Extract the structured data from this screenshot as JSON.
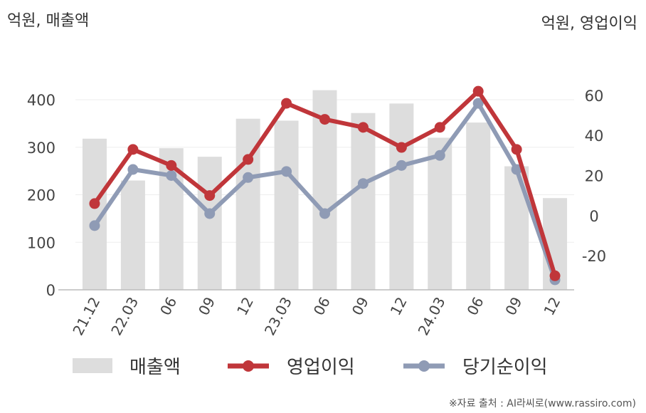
{
  "chart_data": {
    "type": "bar+line",
    "categories": [
      "21.12",
      "22.03",
      "06",
      "09",
      "12",
      "23.03",
      "06",
      "09",
      "12",
      "24.03",
      "06",
      "09",
      "12"
    ],
    "series": [
      {
        "name": "매출액",
        "type": "bar",
        "axis": "left",
        "color": "#dddddd",
        "values": [
          318,
          230,
          298,
          280,
          360,
          356,
          420,
          372,
          392,
          320,
          352,
          260,
          193
        ]
      },
      {
        "name": "영업이익",
        "type": "line",
        "axis": "right",
        "color": "#c0363a",
        "values": [
          6,
          33,
          25,
          10,
          28,
          56,
          48,
          44,
          34,
          44,
          62,
          33,
          -30
        ]
      },
      {
        "name": "당기순이익",
        "type": "line",
        "axis": "right",
        "color": "#8f9bb5",
        "values": [
          -5,
          23,
          20,
          1,
          19,
          22,
          1,
          16,
          25,
          30,
          56,
          23,
          -32
        ]
      }
    ],
    "left_axis": {
      "unit_label": "억원, 매출액",
      "ticks": [
        0,
        100,
        200,
        300,
        400
      ],
      "range": [
        0,
        460
      ]
    },
    "right_axis": {
      "unit_label": "억원, 영업이익",
      "ticks": [
        -20,
        0,
        20,
        40,
        60
      ],
      "range": [
        -37,
        72
      ]
    },
    "grid": true,
    "legend_position": "bottom"
  },
  "source": "※자료 출처 : AI라씨로(www.rassiro.com)"
}
